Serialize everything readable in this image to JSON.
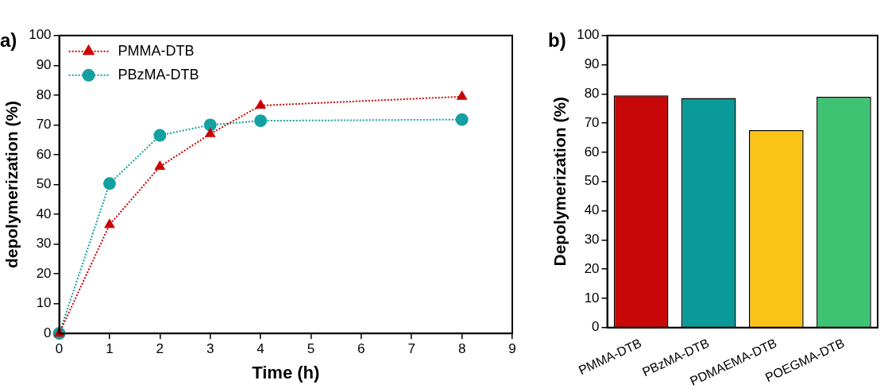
{
  "chart_data": [
    {
      "type": "line",
      "title": "a)",
      "xlabel": "Time (h)",
      "ylabel": "depolymerization (%)",
      "xlim": [
        0,
        9
      ],
      "xticks": [
        0,
        1,
        2,
        3,
        4,
        5,
        6,
        7,
        8,
        9
      ],
      "ylim": [
        0,
        100
      ],
      "yticks": [
        0,
        10,
        20,
        30,
        40,
        50,
        60,
        70,
        80,
        90,
        100
      ],
      "grid": false,
      "legend": "top left",
      "line_style": "dotted",
      "series": [
        {
          "name": "PMMA-DTB",
          "color": "#cc0000",
          "marker": "triangle",
          "x": [
            0,
            1,
            2,
            3,
            4,
            8
          ],
          "values": [
            0,
            36.5,
            56,
            67,
            76.5,
            79.5
          ]
        },
        {
          "name": "PBzMA-DTB",
          "color": "#14a0a0",
          "marker": "circle",
          "x": [
            0,
            1,
            2,
            3,
            4,
            8
          ],
          "values": [
            0,
            50.3,
            66.5,
            70,
            71.4,
            71.8
          ]
        }
      ]
    },
    {
      "type": "bar",
      "title": "b)",
      "ylabel": "Depolymerization (%)",
      "categories": [
        "PMMA-DTB",
        "PBzMA-DTB",
        "PDMAEMA-DTB",
        "POEGMA-DTB"
      ],
      "values": [
        79.5,
        78.6,
        67.6,
        79.0
      ],
      "colors": [
        "#c80808",
        "#0a9a9a",
        "#fbc318",
        "#3ec373"
      ],
      "ylim": [
        0,
        100
      ],
      "yticks": [
        0,
        10,
        20,
        30,
        40,
        50,
        60,
        70,
        80,
        90,
        100
      ],
      "grid": false,
      "legend": false
    }
  ]
}
